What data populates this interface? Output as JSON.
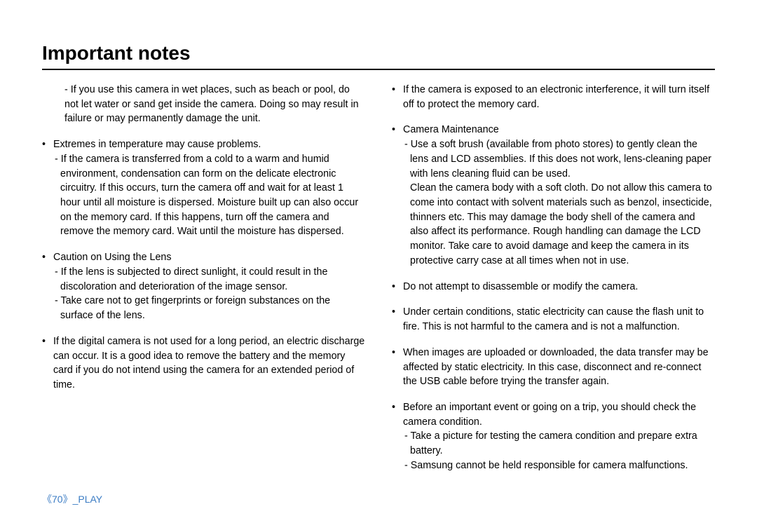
{
  "title": "Important notes",
  "footer": {
    "page": "《70》",
    "section": "_PLAY"
  },
  "left": {
    "p0": "- If you use this camera in wet places, such as beach or pool, do not let water or sand get inside the camera. Doing so may result in failure or may permanently damage the unit.",
    "b1": "Extremes in temperature may cause problems.",
    "b1s": "- If the camera is transferred from a cold to a warm and humid environment, condensation can form on the delicate electronic circuitry. If this occurs, turn the camera off and wait for at least 1 hour until all moisture is dispersed. Moisture built up can also occur on the memory card. If this happens, turn off the camera and remove the memory card. Wait until the moisture has dispersed.",
    "b2": "Caution on Using the Lens",
    "b2s1": "- If the lens is subjected to direct sunlight, it could result in the discoloration and deterioration of the image sensor.",
    "b2s2": "- Take care not to get fingerprints or foreign substances on the surface of the lens.",
    "b3": "If the digital camera is not used for a long period, an electric discharge can occur. It is a good idea to remove the battery and the memory card if you do not intend using the camera for an extended period of time."
  },
  "right": {
    "b1": "If the camera is exposed to an electronic interference, it will turn itself off to protect the memory card.",
    "b2": "Camera Maintenance",
    "b2s1": "- Use a soft brush (available from photo stores) to gently clean the lens and LCD assemblies. If this does not work, lens-cleaning paper with lens cleaning fluid can be used.",
    "b2s2": "Clean the camera body with a soft cloth. Do not allow this camera to come into contact with solvent materials such as benzol, insecticide, thinners etc. This may damage the body shell of the camera and also affect its performance. Rough handling can damage the LCD monitor. Take care to avoid damage and keep the camera in its protective carry case at all times when not in use.",
    "b3": "Do not attempt to disassemble or modify the camera.",
    "b4": "Under certain conditions, static electricity can cause the flash unit to fire. This is not harmful to the camera and is not a malfunction.",
    "b5": "When images are uploaded or downloaded, the data transfer may be affected by static electricity. In this case, disconnect and re-connect the USB cable before trying the transfer again.",
    "b6": "Before an important event or going on a trip, you should check the camera condition.",
    "b6s1": "- Take a picture for testing the camera condition and prepare extra battery.",
    "b6s2": "- Samsung cannot be held responsible for camera malfunctions."
  },
  "colors": {
    "text": "#000000",
    "accent": "#3b7cc4",
    "bg": "#ffffff"
  }
}
